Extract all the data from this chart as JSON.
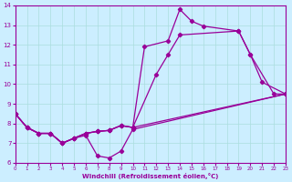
{
  "xlabel": "Windchill (Refroidissement éolien,°C)",
  "xlim": [
    0,
    23
  ],
  "ylim": [
    6,
    14
  ],
  "xticks": [
    0,
    1,
    2,
    3,
    4,
    5,
    6,
    7,
    8,
    9,
    10,
    11,
    12,
    13,
    14,
    15,
    16,
    17,
    18,
    19,
    20,
    21,
    22,
    23
  ],
  "yticks": [
    6,
    7,
    8,
    9,
    10,
    11,
    12,
    13,
    14
  ],
  "bg_color": "#cceeff",
  "line_color": "#990099",
  "grid_color": "#aadddd",
  "line1": {
    "x": [
      0,
      1,
      2,
      3,
      4,
      5,
      6,
      7,
      8,
      9,
      10,
      23
    ],
    "y": [
      8.5,
      7.8,
      7.5,
      7.5,
      7.0,
      7.25,
      7.4,
      6.35,
      6.25,
      6.6,
      7.7,
      9.5
    ]
  },
  "line2": {
    "x": [
      0,
      1,
      2,
      3,
      4,
      5,
      6,
      7,
      8,
      9,
      10,
      11,
      13,
      14,
      15,
      16,
      19,
      20,
      21,
      23
    ],
    "y": [
      8.5,
      7.8,
      7.5,
      7.5,
      7.0,
      7.25,
      7.5,
      7.6,
      7.65,
      7.9,
      7.8,
      11.9,
      12.2,
      13.8,
      13.2,
      12.95,
      12.7,
      11.5,
      10.1,
      9.5
    ]
  },
  "line3": {
    "x": [
      0,
      1,
      2,
      3,
      4,
      5,
      6,
      7,
      8,
      9,
      10,
      12,
      13,
      14,
      19,
      20,
      22,
      23
    ],
    "y": [
      8.5,
      7.8,
      7.5,
      7.5,
      7.0,
      7.25,
      7.5,
      7.6,
      7.65,
      7.9,
      7.8,
      10.5,
      11.5,
      12.5,
      12.7,
      11.5,
      9.5,
      9.5
    ]
  },
  "line4": {
    "x": [
      0,
      1,
      2,
      3,
      4,
      5,
      6,
      7,
      8,
      9,
      10,
      23
    ],
    "y": [
      8.5,
      7.8,
      7.5,
      7.5,
      7.0,
      7.25,
      7.5,
      7.6,
      7.65,
      7.9,
      7.8,
      9.5
    ]
  }
}
